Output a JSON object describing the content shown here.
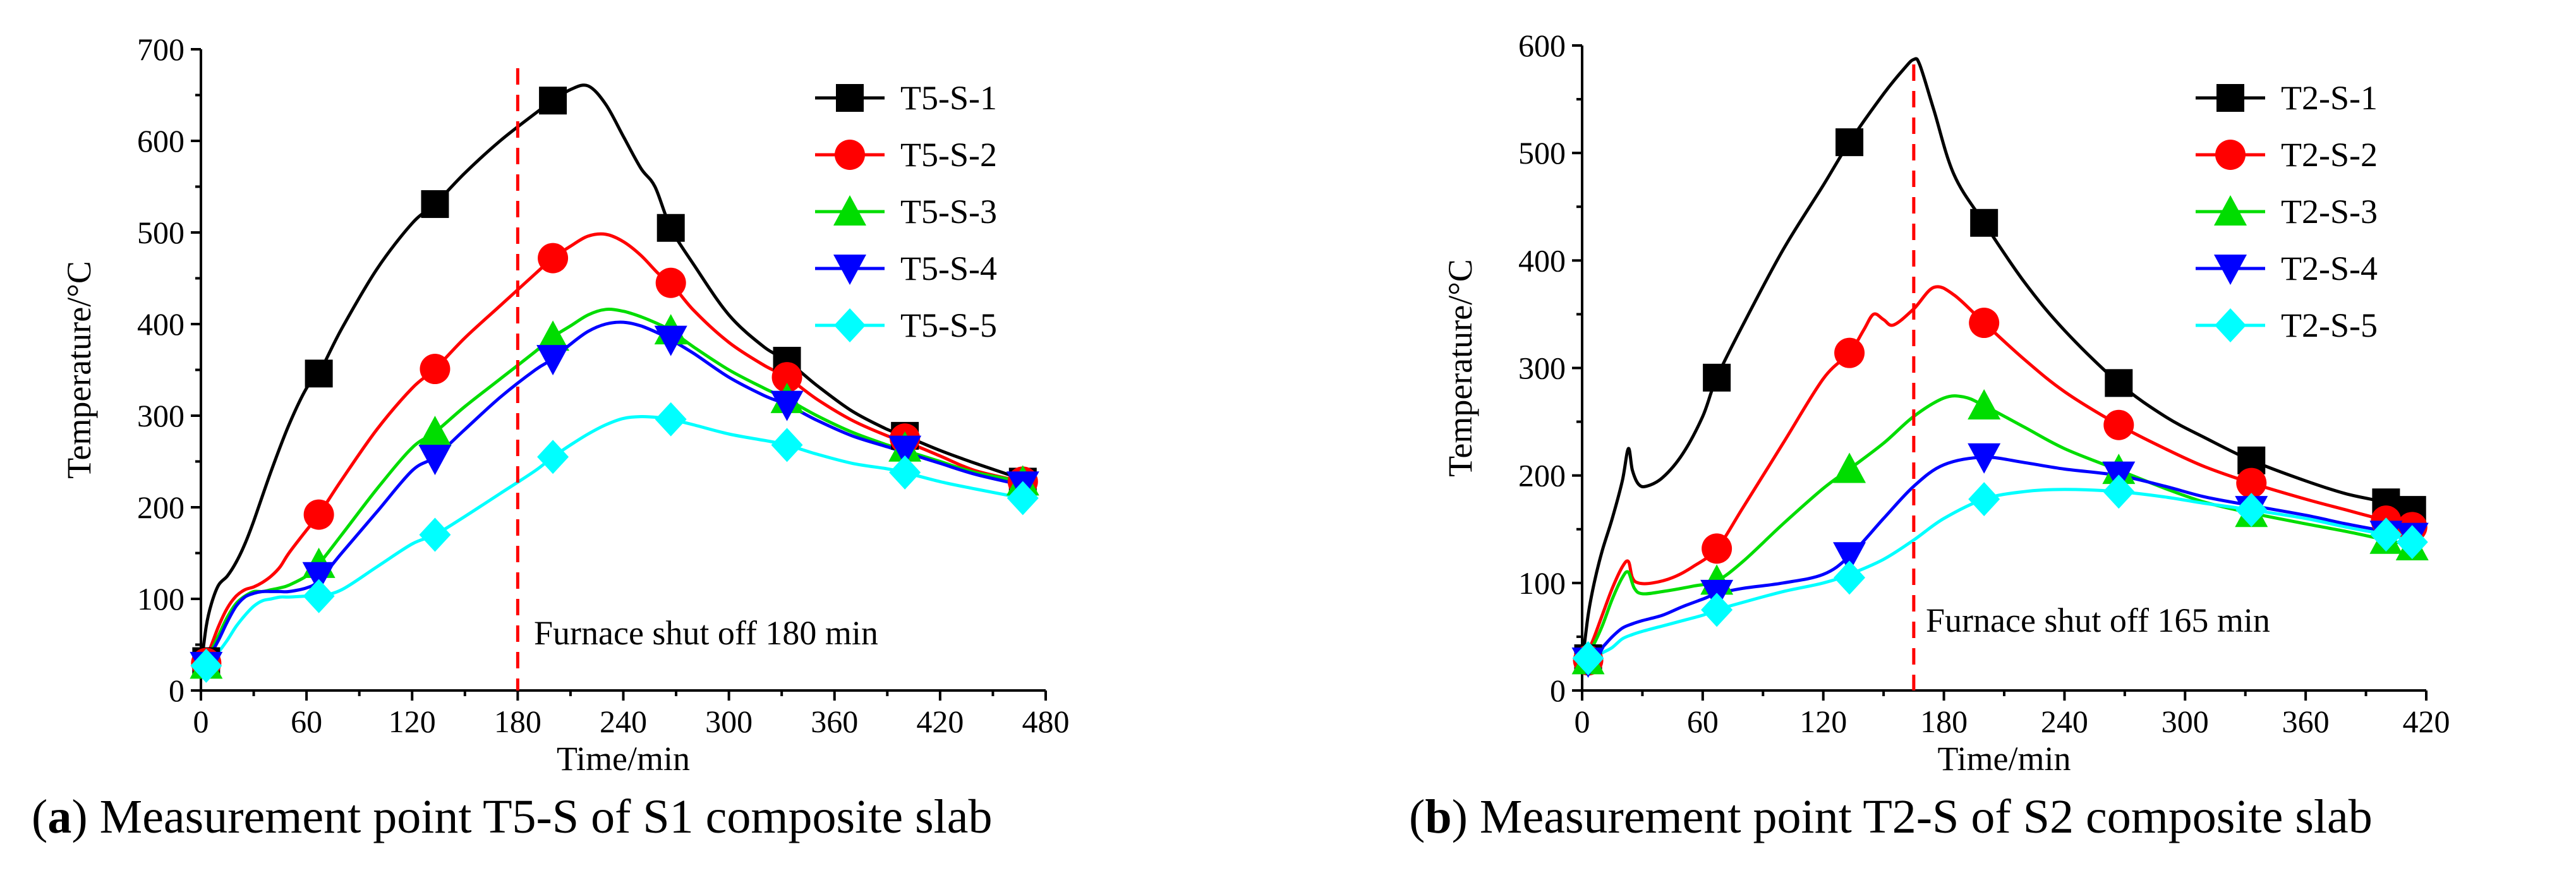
{
  "chart_data": [
    {
      "type": "line",
      "caption_prefix": "(",
      "caption_letter": "a",
      "caption_text": ") Measurement point T5-S of S1 composite slab",
      "xlabel": "Time/min",
      "ylabel": "Temperature/°C",
      "xlim": [
        0,
        480
      ],
      "ylim": [
        0,
        700
      ],
      "xticks": [
        0,
        60,
        120,
        180,
        240,
        300,
        360,
        420,
        480
      ],
      "yticks": [
        0,
        100,
        200,
        300,
        400,
        500,
        600,
        700
      ],
      "legend_position": "top-right",
      "annotation": "Furnace shut off 180 min",
      "vline_x": 180,
      "series": [
        {
          "name": "T5-S-1",
          "color": "#000000",
          "marker": "square",
          "x": [
            0,
            3,
            6,
            10,
            15,
            20,
            25,
            30,
            40,
            50,
            60,
            67,
            80,
            100,
            120,
            133,
            150,
            170,
            190,
            200,
            210,
            220,
            230,
            240,
            250,
            258,
            267,
            280,
            300,
            320,
            333,
            350,
            370,
            390,
            400,
            420,
            440,
            460,
            467
          ],
          "y": [
            25,
            70,
            95,
            115,
            125,
            140,
            160,
            185,
            240,
            290,
            330,
            346,
            395,
            460,
            510,
            531,
            565,
            600,
            630,
            644,
            656,
            660,
            640,
            605,
            570,
            550,
            505,
            465,
            410,
            375,
            360,
            333,
            305,
            285,
            278,
            262,
            248,
            235,
            230
          ],
          "mx": [
            3,
            67,
            133,
            200,
            267,
            333,
            400,
            467
          ],
          "my": [
            32,
            346,
            531,
            644,
            505,
            360,
            278,
            228
          ]
        },
        {
          "name": "T5-S-2",
          "color": "#ff0000",
          "marker": "circle",
          "x": [
            0,
            5,
            10,
            15,
            20,
            25,
            30,
            35,
            40,
            45,
            50,
            60,
            67,
            80,
            100,
            120,
            133,
            150,
            170,
            190,
            200,
            210,
            220,
            230,
            240,
            250,
            260,
            267,
            280,
            300,
            320,
            333,
            350,
            370,
            390,
            400,
            420,
            440,
            467
          ],
          "y": [
            25,
            45,
            70,
            90,
            103,
            110,
            113,
            118,
            125,
            135,
            150,
            175,
            192,
            230,
            285,
            330,
            351,
            385,
            420,
            455,
            472,
            485,
            496,
            498,
            490,
            475,
            455,
            445,
            415,
            380,
            355,
            342,
            318,
            295,
            278,
            272,
            256,
            240,
            228
          ],
          "mx": [
            3,
            67,
            133,
            200,
            267,
            333,
            400,
            467
          ],
          "my": [
            30,
            192,
            351,
            472,
            445,
            342,
            275,
            228
          ]
        },
        {
          "name": "T5-S-3",
          "color": "#00dd00",
          "marker": "triangle-up",
          "x": [
            0,
            5,
            10,
            15,
            20,
            25,
            30,
            35,
            40,
            45,
            50,
            60,
            67,
            80,
            100,
            120,
            133,
            150,
            170,
            190,
            200,
            210,
            220,
            230,
            240,
            250,
            260,
            267,
            280,
            300,
            320,
            333,
            350,
            370,
            390,
            400,
            420,
            440,
            467
          ],
          "y": [
            25,
            40,
            60,
            80,
            95,
            103,
            108,
            108,
            110,
            112,
            115,
            125,
            138,
            170,
            220,
            265,
            282,
            310,
            340,
            370,
            386,
            398,
            410,
            416,
            414,
            408,
            400,
            393,
            375,
            350,
            330,
            318,
            300,
            282,
            268,
            262,
            250,
            238,
            228
          ],
          "mx": [
            3,
            67,
            133,
            200,
            267,
            333,
            400,
            467
          ],
          "my": [
            28,
            138,
            282,
            386,
            393,
            318,
            265,
            228
          ]
        },
        {
          "name": "T5-S-4",
          "color": "#0000ff",
          "marker": "triangle-down",
          "x": [
            0,
            5,
            10,
            15,
            20,
            25,
            30,
            35,
            40,
            45,
            50,
            60,
            67,
            80,
            100,
            120,
            133,
            150,
            170,
            190,
            200,
            210,
            220,
            230,
            240,
            250,
            260,
            267,
            280,
            300,
            320,
            333,
            350,
            370,
            390,
            400,
            420,
            440,
            467
          ],
          "y": [
            25,
            38,
            55,
            75,
            92,
            102,
            106,
            108,
            108,
            108,
            108,
            112,
            120,
            150,
            195,
            240,
            255,
            285,
            320,
            350,
            362,
            378,
            392,
            400,
            402,
            398,
            390,
            383,
            368,
            342,
            322,
            312,
            295,
            278,
            266,
            260,
            248,
            236,
            224
          ],
          "mx": [
            3,
            67,
            133,
            200,
            267,
            333,
            400,
            467
          ],
          "my": [
            27,
            125,
            253,
            362,
            383,
            312,
            263,
            224
          ]
        },
        {
          "name": "T5-S-5",
          "color": "#00ffff",
          "marker": "diamond",
          "x": [
            0,
            5,
            10,
            15,
            20,
            25,
            30,
            35,
            40,
            45,
            50,
            60,
            67,
            80,
            100,
            120,
            133,
            150,
            170,
            190,
            200,
            210,
            220,
            230,
            240,
            250,
            260,
            267,
            280,
            300,
            320,
            333,
            350,
            370,
            390,
            400,
            420,
            440,
            467
          ],
          "y": [
            25,
            32,
            42,
            55,
            70,
            82,
            92,
            98,
            100,
            102,
            102,
            103,
            103,
            110,
            135,
            160,
            170,
            190,
            215,
            240,
            255,
            268,
            280,
            290,
            297,
            299,
            298,
            296,
            290,
            280,
            273,
            268,
            258,
            248,
            242,
            238,
            228,
            220,
            210
          ],
          "mx": [
            3,
            67,
            133,
            200,
            267,
            333,
            400,
            467
          ],
          "my": [
            27,
            103,
            170,
            255,
            296,
            268,
            238,
            210
          ]
        }
      ]
    },
    {
      "type": "line",
      "caption_prefix": "(",
      "caption_letter": "b",
      "caption_text": ") Measurement point T2-S of S2 composite slab",
      "xlabel": "Time/min",
      "ylabel": "Temperature/°C",
      "xlim": [
        0,
        420
      ],
      "ylim": [
        0,
        600
      ],
      "xticks": [
        0,
        60,
        120,
        180,
        240,
        300,
        360,
        420
      ],
      "yticks": [
        0,
        100,
        200,
        300,
        400,
        500,
        600
      ],
      "legend_position": "top-right",
      "annotation": "Furnace shut off 165 min",
      "vline_x": 165,
      "series": [
        {
          "name": "T2-S-1",
          "color": "#000000",
          "marker": "square",
          "x": [
            0,
            3,
            6,
            10,
            15,
            20,
            23,
            25,
            28,
            32,
            40,
            50,
            60,
            67,
            80,
            100,
            120,
            133,
            150,
            160,
            165,
            168,
            175,
            185,
            200,
            220,
            240,
            267,
            290,
            310,
            333,
            360,
            380,
            400,
            413
          ],
          "y": [
            25,
            70,
            100,
            130,
            160,
            195,
            225,
            205,
            192,
            190,
            198,
            220,
            255,
            291,
            340,
            410,
            470,
            510,
            555,
            578,
            587,
            582,
            540,
            480,
            435,
            380,
            335,
            286,
            255,
            235,
            214,
            195,
            183,
            175,
            168
          ],
          "mx": [
            3,
            67,
            133,
            200,
            267,
            333,
            400,
            413
          ],
          "my": [
            30,
            291,
            510,
            435,
            286,
            214,
            175,
            168
          ]
        },
        {
          "name": "T2-S-2",
          "color": "#ff0000",
          "marker": "circle",
          "x": [
            0,
            5,
            10,
            15,
            20,
            23,
            25,
            28,
            35,
            45,
            55,
            67,
            80,
            100,
            120,
            133,
            140,
            145,
            150,
            155,
            165,
            175,
            185,
            200,
            220,
            240,
            267,
            290,
            310,
            333,
            360,
            380,
            400,
            413
          ],
          "y": [
            25,
            45,
            70,
            95,
            115,
            120,
            105,
            100,
            100,
            105,
            115,
            132,
            170,
            230,
            290,
            314,
            335,
            350,
            345,
            340,
            355,
            375,
            368,
            342,
            308,
            278,
            247,
            225,
            208,
            193,
            178,
            168,
            158,
            152
          ],
          "mx": [
            3,
            67,
            133,
            200,
            267,
            333,
            400,
            413
          ],
          "my": [
            28,
            132,
            314,
            342,
            247,
            193,
            158,
            152
          ]
        },
        {
          "name": "T2-S-3",
          "color": "#00dd00",
          "marker": "triangle-up",
          "x": [
            0,
            5,
            10,
            15,
            20,
            23,
            26,
            30,
            40,
            55,
            67,
            80,
            100,
            120,
            133,
            150,
            165,
            180,
            190,
            200,
            220,
            240,
            267,
            290,
            310,
            333,
            360,
            380,
            400,
            413
          ],
          "y": [
            25,
            40,
            60,
            85,
            105,
            110,
            95,
            90,
            92,
            97,
            102,
            120,
            155,
            188,
            206,
            230,
            255,
            272,
            273,
            265,
            245,
            225,
            205,
            188,
            175,
            165,
            155,
            148,
            140,
            135
          ],
          "mx": [
            3,
            67,
            133,
            200,
            267,
            333,
            400,
            413
          ],
          "my": [
            28,
            102,
            206,
            265,
            205,
            165,
            140,
            134
          ]
        },
        {
          "name": "T2-S-4",
          "color": "#0000ff",
          "marker": "triangle-down",
          "x": [
            0,
            5,
            10,
            15,
            20,
            25,
            30,
            40,
            50,
            60,
            67,
            80,
            100,
            120,
            133,
            150,
            165,
            180,
            200,
            220,
            240,
            267,
            290,
            310,
            333,
            360,
            380,
            400,
            413
          ],
          "y": [
            25,
            32,
            40,
            50,
            58,
            62,
            65,
            70,
            78,
            85,
            90,
            95,
            100,
            108,
            125,
            160,
            190,
            210,
            217,
            212,
            206,
            200,
            190,
            180,
            172,
            163,
            155,
            148,
            143
          ],
          "mx": [
            3,
            67,
            133,
            200,
            267,
            333,
            400,
            413
          ],
          "my": [
            27,
            90,
            125,
            217,
            200,
            168,
            145,
            143
          ]
        },
        {
          "name": "T2-S-5",
          "color": "#00ffff",
          "marker": "diamond",
          "x": [
            0,
            5,
            10,
            15,
            20,
            25,
            30,
            40,
            50,
            60,
            67,
            80,
            100,
            120,
            133,
            150,
            165,
            180,
            200,
            220,
            240,
            267,
            290,
            310,
            333,
            360,
            380,
            400,
            413
          ],
          "y": [
            25,
            30,
            35,
            40,
            48,
            52,
            55,
            60,
            65,
            70,
            75,
            82,
            92,
            100,
            108,
            122,
            140,
            160,
            178,
            185,
            187,
            185,
            180,
            174,
            168,
            160,
            152,
            145,
            140
          ],
          "mx": [
            3,
            67,
            133,
            200,
            267,
            333,
            400,
            413
          ],
          "my": [
            30,
            75,
            105,
            178,
            185,
            168,
            145,
            138
          ]
        }
      ]
    }
  ]
}
